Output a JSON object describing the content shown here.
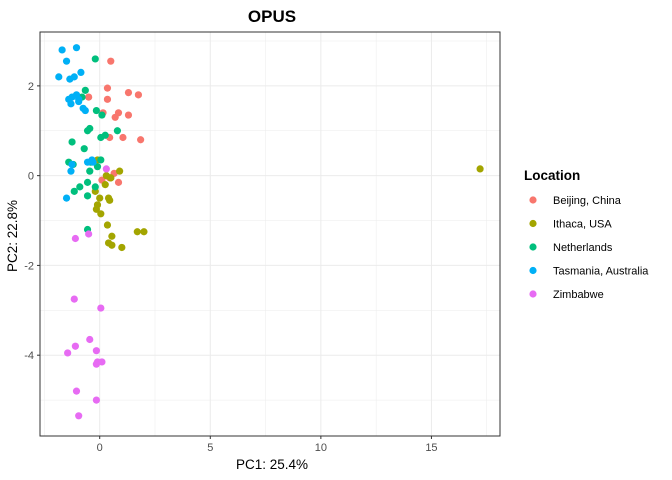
{
  "chart_data": {
    "type": "scatter",
    "title": "OPUS",
    "xlabel": "PC1: 25.4%",
    "ylabel": "PC2: 22.8%",
    "xlim": [
      -2.7,
      18.1
    ],
    "ylim": [
      -5.8,
      3.2
    ],
    "x_ticks": [
      0,
      5,
      10,
      15
    ],
    "y_ticks": [
      2,
      0,
      -2,
      -4
    ],
    "grid": true,
    "legend_title": "Location",
    "legend_position": "right",
    "series": [
      {
        "name": "Beijing, China",
        "color": "#F8766D",
        "points": [
          [
            0.5,
            2.55
          ],
          [
            0.35,
            1.95
          ],
          [
            1.3,
            1.85
          ],
          [
            1.75,
            1.8
          ],
          [
            0.35,
            1.7
          ],
          [
            -0.5,
            1.75
          ],
          [
            0.15,
            1.4
          ],
          [
            0.7,
            1.3
          ],
          [
            0.85,
            1.4
          ],
          [
            1.3,
            1.35
          ],
          [
            1.05,
            0.85
          ],
          [
            0.45,
            0.85
          ],
          [
            1.85,
            0.8
          ],
          [
            0.65,
            0.05
          ],
          [
            0.45,
            -0.05
          ],
          [
            0.1,
            -0.1
          ],
          [
            0.85,
            -0.15
          ]
        ]
      },
      {
        "name": "Ithaca, USA",
        "color": "#A3A500",
        "points": [
          [
            17.2,
            0.15
          ],
          [
            -0.1,
            0.35
          ],
          [
            0.9,
            0.1
          ],
          [
            0.5,
            -0.05
          ],
          [
            0.3,
            0.0
          ],
          [
            0.25,
            -0.2
          ],
          [
            0.5,
            -0.05
          ],
          [
            -0.2,
            -0.35
          ],
          [
            0.0,
            -0.5
          ],
          [
            0.4,
            -0.5
          ],
          [
            0.45,
            -0.55
          ],
          [
            -0.1,
            -0.65
          ],
          [
            -0.15,
            -0.75
          ],
          [
            0.05,
            -0.85
          ],
          [
            0.35,
            -1.1
          ],
          [
            1.7,
            -1.25
          ],
          [
            2.0,
            -1.25
          ],
          [
            0.55,
            -1.35
          ],
          [
            0.4,
            -1.5
          ],
          [
            0.55,
            -1.55
          ],
          [
            1.0,
            -1.6
          ]
        ]
      },
      {
        "name": "Netherlands",
        "color": "#00BF7D",
        "points": [
          [
            -0.2,
            2.6
          ],
          [
            -0.65,
            1.9
          ],
          [
            -0.8,
            1.75
          ],
          [
            -0.15,
            1.45
          ],
          [
            0.1,
            1.35
          ],
          [
            -0.45,
            1.05
          ],
          [
            -0.55,
            1.0
          ],
          [
            0.8,
            1.0
          ],
          [
            0.25,
            0.9
          ],
          [
            -1.25,
            0.75
          ],
          [
            0.05,
            0.85
          ],
          [
            -0.7,
            0.6
          ],
          [
            0.05,
            0.35
          ],
          [
            -0.4,
            0.3
          ],
          [
            -1.4,
            0.3
          ],
          [
            -1.2,
            0.25
          ],
          [
            -0.1,
            0.2
          ],
          [
            -0.45,
            0.1
          ],
          [
            -0.55,
            -0.15
          ],
          [
            -0.2,
            -0.25
          ],
          [
            -0.9,
            -0.25
          ],
          [
            -1.15,
            -0.35
          ],
          [
            -0.55,
            -0.45
          ],
          [
            -0.55,
            -1.2
          ]
        ]
      },
      {
        "name": "Tasmania, Australia",
        "color": "#00B0F6",
        "points": [
          [
            -1.7,
            2.8
          ],
          [
            -1.05,
            2.85
          ],
          [
            -1.5,
            2.55
          ],
          [
            -0.85,
            2.3
          ],
          [
            -1.15,
            2.2
          ],
          [
            -1.85,
            2.2
          ],
          [
            -1.35,
            2.15
          ],
          [
            -1.05,
            1.8
          ],
          [
            -1.25,
            1.75
          ],
          [
            -0.95,
            1.7
          ],
          [
            -1.4,
            1.7
          ],
          [
            -0.95,
            1.65
          ],
          [
            -1.3,
            1.6
          ],
          [
            -0.75,
            1.5
          ],
          [
            -0.65,
            1.45
          ],
          [
            -0.35,
            0.35
          ],
          [
            -0.3,
            0.3
          ],
          [
            -0.55,
            0.3
          ],
          [
            -1.25,
            0.25
          ],
          [
            -1.3,
            0.1
          ],
          [
            -1.5,
            -0.5
          ]
        ]
      },
      {
        "name": "Zimbabwe",
        "color": "#E76BF3",
        "points": [
          [
            0.3,
            0.15
          ],
          [
            -0.5,
            -1.3
          ],
          [
            -1.1,
            -1.4
          ],
          [
            -1.15,
            -2.75
          ],
          [
            0.05,
            -2.95
          ],
          [
            -0.45,
            -3.65
          ],
          [
            -1.1,
            -3.8
          ],
          [
            -0.15,
            -3.9
          ],
          [
            -1.45,
            -3.95
          ],
          [
            -0.1,
            -4.15
          ],
          [
            0.1,
            -4.15
          ],
          [
            -0.15,
            -4.2
          ],
          [
            -1.05,
            -4.8
          ],
          [
            -0.15,
            -5.0
          ],
          [
            -0.95,
            -5.35
          ]
        ]
      }
    ]
  }
}
